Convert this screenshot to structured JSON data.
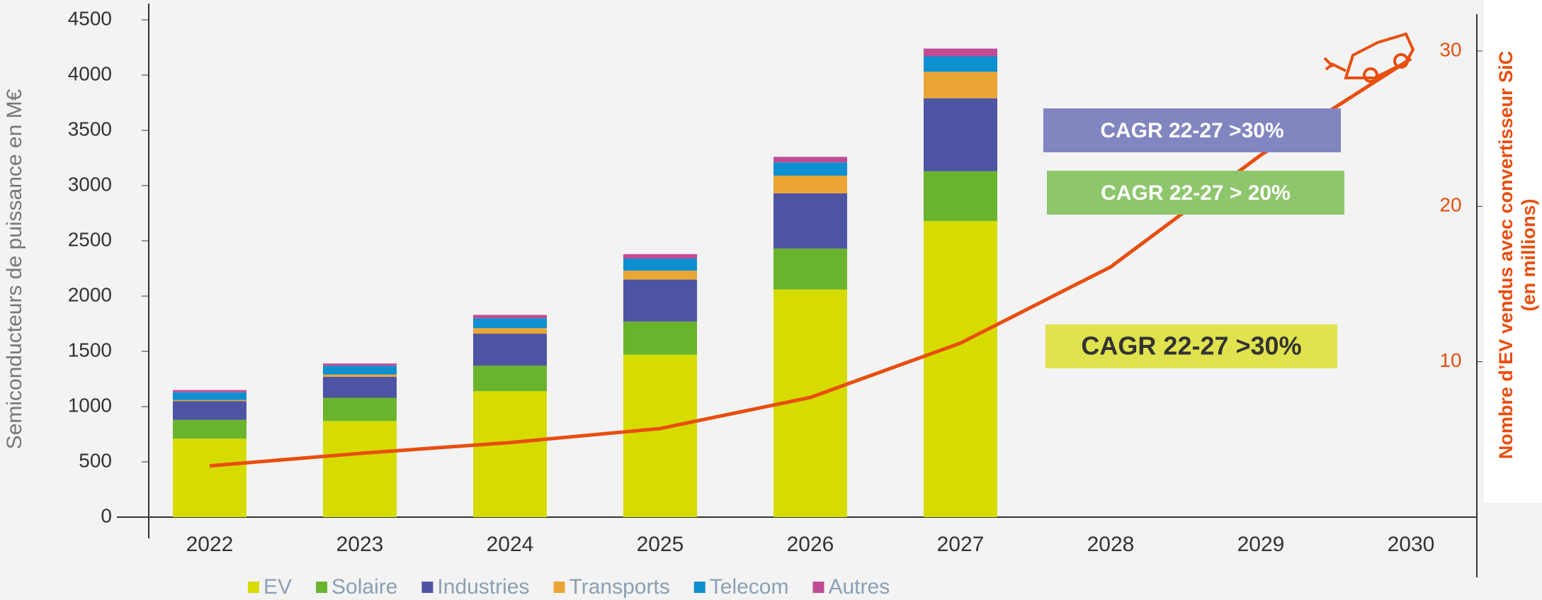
{
  "chart_data": {
    "type": "bar",
    "categories": [
      "2022",
      "2023",
      "2024",
      "2025",
      "2026",
      "2027",
      "2028",
      "2029",
      "2030"
    ],
    "series": [
      {
        "name": "EV",
        "color": "#d6dc00",
        "values": [
          710,
          870,
          1140,
          1470,
          2060,
          2680,
          null,
          null,
          null
        ]
      },
      {
        "name": "Solaire",
        "color": "#6ab42d",
        "values": [
          170,
          210,
          230,
          300,
          370,
          450,
          null,
          null,
          null
        ]
      },
      {
        "name": "Industries",
        "color": "#4e54a4",
        "values": [
          170,
          190,
          290,
          380,
          500,
          660,
          null,
          null,
          null
        ]
      },
      {
        "name": "Transports",
        "color": "#eaa534",
        "values": [
          10,
          20,
          50,
          80,
          160,
          240,
          null,
          null,
          null
        ]
      },
      {
        "name": "Telecom",
        "color": "#0e8fd0",
        "values": [
          70,
          80,
          90,
          110,
          120,
          140,
          null,
          null,
          null
        ]
      },
      {
        "name": "Autres",
        "color": "#c04c95",
        "values": [
          20,
          20,
          30,
          40,
          50,
          70,
          null,
          null,
          null
        ]
      }
    ],
    "line": {
      "type": "line",
      "axis": "y2",
      "color": "#e84e0f",
      "values": [
        3.3,
        4.1,
        4.8,
        5.7,
        7.7,
        11.2,
        16.1,
        23.3,
        29.5
      ]
    },
    "ylabel": "Semiconducteurs de puissance en M€",
    "y2label": [
      "Nombre d’EV vendus avec convertisseur SiC",
      "(en millions)"
    ],
    "ylim": [
      0,
      4500
    ],
    "yticks": [
      0,
      500,
      1000,
      1500,
      2000,
      2500,
      3000,
      3500,
      4000,
      4500
    ],
    "y2lim": [
      0,
      32
    ],
    "y2ticks": [
      10,
      20,
      30
    ],
    "annotations": [
      {
        "text": "CAGR 22-27 >30%",
        "color": "#8185c0"
      },
      {
        "text": "CAGR 22-27 > 20%",
        "color": "#8dc66b"
      },
      {
        "text": "CAGR 22-27 >30%",
        "color": "#e0e34d"
      }
    ]
  }
}
